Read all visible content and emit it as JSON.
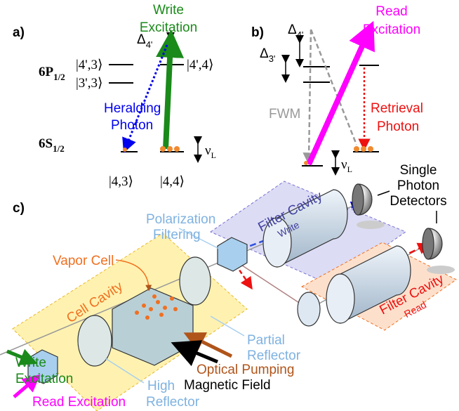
{
  "panel_a": {
    "label": "a)",
    "write_excitation": [
      "Write",
      "Excitation"
    ],
    "delta": {
      "symbol": "Δ",
      "sub": "4'"
    },
    "excited_manifold": {
      "symbol": "6P",
      "sub": "1/2"
    },
    "states": [
      "|4',3⟩",
      "|3',3⟩",
      "|4',4⟩",
      "|4,3⟩",
      "|4,4⟩"
    ],
    "heralding_photon": [
      "Heralding",
      "Photon"
    ],
    "ground_manifold": {
      "symbol": "6S",
      "sub": "1/2"
    },
    "nu": {
      "symbol": "ν",
      "sub": "L"
    }
  },
  "panel_b": {
    "label": "b)",
    "read_excitation": [
      "Read",
      "Excitation"
    ],
    "delta_4": {
      "symbol": "Δ",
      "sub": "4'"
    },
    "delta_3": {
      "symbol": "Δ",
      "sub": "3'"
    },
    "fwm": "FWM",
    "retrieval_photon": [
      "Retrieval",
      "Photon"
    ],
    "nu": {
      "symbol": "ν",
      "sub": "L"
    }
  },
  "panel_c": {
    "label": "c)",
    "detectors": [
      "Single",
      "Photon",
      "Detectors"
    ],
    "filter_write": [
      "Filter Cavity",
      "Write"
    ],
    "filter_read": [
      "Filter Cavity",
      "Read"
    ],
    "polarization": [
      "Polarization",
      "Filtering"
    ],
    "vapor_cell": "Vapor Cell",
    "cell_cavity": "Cell Cavity",
    "partial_reflector": [
      "Partial",
      "Reflector"
    ],
    "write_excitation": [
      "Write",
      "Excitation"
    ],
    "optical_pumping": "Optical Pumping",
    "magnetic_field": "Magnetic Field",
    "high_reflector": [
      "High",
      "Reflector"
    ],
    "read_excitation": "Read Excitation"
  }
}
